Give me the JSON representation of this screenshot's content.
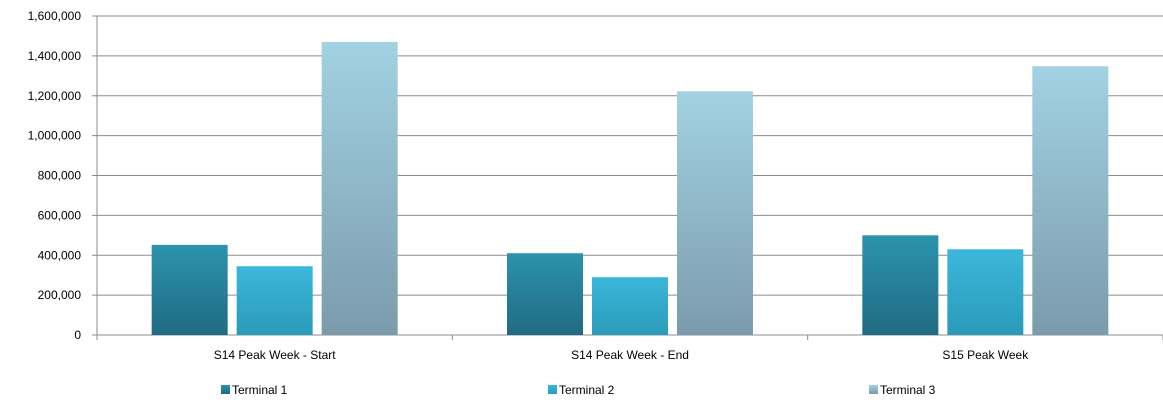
{
  "chart_data": {
    "type": "bar",
    "title": "",
    "xlabel": "",
    "ylabel": "",
    "categories": [
      "S14 Peak Week - Start",
      "S14 Peak Week - End",
      "S15 Peak Week"
    ],
    "series": [
      {
        "name": "Terminal 1",
        "values": [
          452000,
          410000,
          500000
        ],
        "color_top": "#2c93ad",
        "color_bottom": "#206b83"
      },
      {
        "name": "Terminal 2",
        "values": [
          345000,
          290000,
          430000
        ],
        "color_top": "#3cb7db",
        "color_bottom": "#2a9bb9"
      },
      {
        "name": "Terminal 3",
        "values": [
          1470000,
          1222000,
          1348000
        ],
        "color_top": "#a2d2e3",
        "color_bottom": "#7b9bac"
      }
    ],
    "ylim": [
      0,
      1600000
    ],
    "yticks": [
      0,
      200000,
      400000,
      600000,
      800000,
      1000000,
      1200000,
      1400000,
      1600000
    ],
    "ytick_labels": [
      "0",
      "200,000",
      "400,000",
      "600,000",
      "800,000",
      "1,000,000",
      "1,200,000",
      "1,400,000",
      "1,600,000"
    ],
    "grid": true,
    "legend_position": "bottom"
  }
}
